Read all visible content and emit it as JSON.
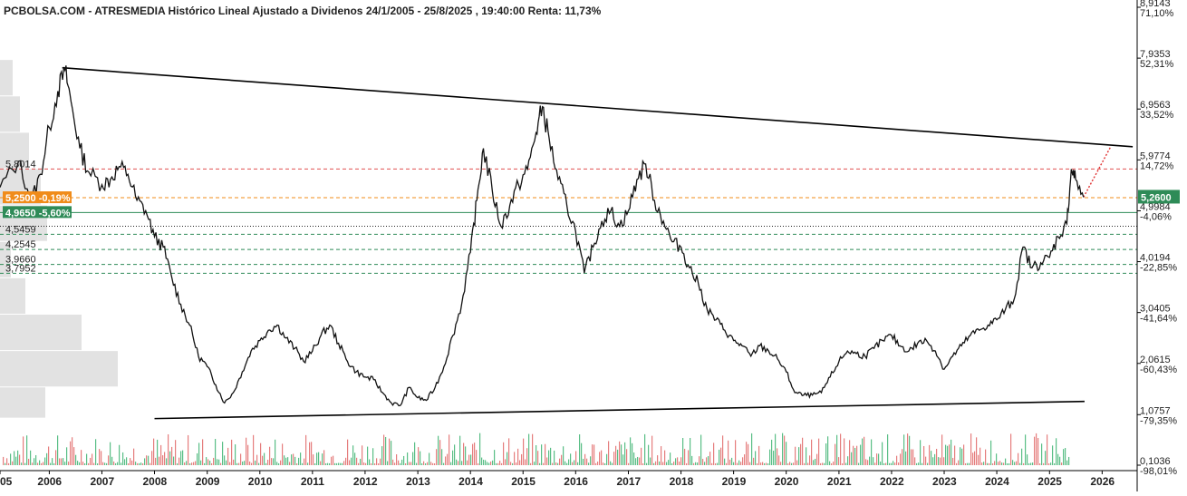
{
  "chart_data": {
    "type": "line",
    "title": "PCBOLSA.COM - ATRESMEDIA Histórico Lineal Ajustado a Dividenos 24/1/2005 - 25/8/2025 , 19:40:00 Renta: 11,73%",
    "x_range": [
      "2005-01-24",
      "2026-09-01"
    ],
    "y_range": [
      0.1036,
      8.9143
    ],
    "x_ticks": [
      "05",
      "2006",
      "2007",
      "2008",
      "2009",
      "2010",
      "2011",
      "2012",
      "2013",
      "2014",
      "2015",
      "2016",
      "2017",
      "2018",
      "2019",
      "2020",
      "2021",
      "2022",
      "2023",
      "2024",
      "2025",
      "2026"
    ],
    "y_ticks": [
      {
        "value": 8.9143,
        "label": "8,9143",
        "pct": "71,10%"
      },
      {
        "value": 7.9353,
        "label": "7,9353",
        "pct": "52,31%"
      },
      {
        "value": 6.9563,
        "label": "6,9563",
        "pct": "33,52%"
      },
      {
        "value": 5.9774,
        "label": "5,9774",
        "pct": "14,72%"
      },
      {
        "value": 4.9984,
        "label": "4,9984",
        "pct": "-4,06%"
      },
      {
        "value": 4.0194,
        "label": "4,0194",
        "pct": "-22,85%"
      },
      {
        "value": 3.0405,
        "label": "3,0405",
        "pct": "-41,64%"
      },
      {
        "value": 2.0615,
        "label": "2,0615",
        "pct": "-60,43%"
      },
      {
        "value": 1.0757,
        "label": "1,0757",
        "pct": "-79,35%"
      },
      {
        "value": 0.1036,
        "label": "0,1036",
        "pct": "-98,01%"
      }
    ],
    "series": [
      {
        "x": [
          "2005-01-24",
          "2005-06-01",
          "2005-09-01",
          "2005-11-01",
          "2006-01-01",
          "2006-03-01",
          "2006-04-20",
          "2006-06-01",
          "2006-08-01",
          "2006-10-01",
          "2007-01-01",
          "2007-03-01",
          "2007-05-01",
          "2007-07-01",
          "2007-09-01",
          "2007-11-01",
          "2008-01-01",
          "2008-03-01",
          "2008-05-01",
          "2008-07-01",
          "2008-09-01",
          "2008-11-01",
          "2009-01-01",
          "2009-03-01",
          "2009-05-01",
          "2009-07-01",
          "2009-09-01",
          "2009-11-01",
          "2010-01-01",
          "2010-03-01",
          "2010-05-01",
          "2010-07-01",
          "2010-09-01",
          "2010-11-01",
          "2011-01-01",
          "2011-03-01",
          "2011-05-01",
          "2011-07-01",
          "2011-09-01",
          "2011-11-01",
          "2012-01-01",
          "2012-03-01",
          "2012-05-01",
          "2012-07-01",
          "2012-09-01",
          "2012-11-01",
          "2013-01-01",
          "2013-03-01",
          "2013-05-01",
          "2013-07-01",
          "2013-09-01",
          "2013-11-01",
          "2014-01-01",
          "2014-02-15",
          "2014-04-01",
          "2014-06-01",
          "2014-08-01",
          "2014-10-01",
          "2014-12-01",
          "2015-02-01",
          "2015-04-01",
          "2015-05-15",
          "2015-07-01",
          "2015-09-01",
          "2015-11-01",
          "2016-01-01",
          "2016-03-01",
          "2016-05-01",
          "2016-07-01",
          "2016-09-01",
          "2016-11-01",
          "2017-01-01",
          "2017-03-01",
          "2017-05-01",
          "2017-07-01",
          "2017-09-01",
          "2017-11-01",
          "2018-01-01",
          "2018-03-01",
          "2018-05-01",
          "2018-07-01",
          "2018-09-01",
          "2018-11-01",
          "2019-01-01",
          "2019-03-01",
          "2019-05-01",
          "2019-07-01",
          "2019-09-01",
          "2019-11-01",
          "2020-01-01",
          "2020-03-01",
          "2020-05-01",
          "2020-07-01",
          "2020-09-01",
          "2020-11-01",
          "2021-01-01",
          "2021-03-01",
          "2021-05-01",
          "2021-07-01",
          "2021-09-01",
          "2021-11-01",
          "2022-01-01",
          "2022-03-01",
          "2022-05-01",
          "2022-07-01",
          "2022-09-01",
          "2022-11-01",
          "2023-01-01",
          "2023-03-01",
          "2023-05-01",
          "2023-07-01",
          "2023-09-01",
          "2023-11-01",
          "2024-01-01",
          "2024-03-01",
          "2024-05-01",
          "2024-07-01",
          "2024-09-01",
          "2024-11-01",
          "2025-01-01",
          "2025-03-01",
          "2025-05-01",
          "2025-06-01",
          "2025-07-01",
          "2025-08-25"
        ],
        "values": [
          5.45,
          5.95,
          5.2,
          5.7,
          6.6,
          7.3,
          7.7,
          7.1,
          6.2,
          5.75,
          5.5,
          5.6,
          5.85,
          5.7,
          5.2,
          5.0,
          4.5,
          4.3,
          3.7,
          3.2,
          2.8,
          2.2,
          2.0,
          1.65,
          1.3,
          1.5,
          1.9,
          2.3,
          2.5,
          2.7,
          2.8,
          2.55,
          2.35,
          2.1,
          2.3,
          2.6,
          2.8,
          2.45,
          2.1,
          1.9,
          1.8,
          1.75,
          1.5,
          1.3,
          1.25,
          1.6,
          1.4,
          1.35,
          1.6,
          2.0,
          2.6,
          3.2,
          4.2,
          5.2,
          6.2,
          5.4,
          4.7,
          5.1,
          5.5,
          5.8,
          6.5,
          7.0,
          6.4,
          5.6,
          5.1,
          4.6,
          3.8,
          4.3,
          4.8,
          5.0,
          4.7,
          5.0,
          5.6,
          5.9,
          5.2,
          4.8,
          4.4,
          4.3,
          3.9,
          3.6,
          3.1,
          2.9,
          2.7,
          2.5,
          2.4,
          2.2,
          2.4,
          2.3,
          2.15,
          1.9,
          1.5,
          1.45,
          1.45,
          1.5,
          1.8,
          2.1,
          2.3,
          2.25,
          2.2,
          2.35,
          2.5,
          2.6,
          2.4,
          2.3,
          2.45,
          2.5,
          2.3,
          1.95,
          2.2,
          2.4,
          2.6,
          2.7,
          2.8,
          2.9,
          3.1,
          3.3,
          4.3,
          3.9,
          4.0,
          4.1,
          4.5,
          4.75,
          5.8,
          5.6,
          5.26
        ]
      }
    ],
    "trendlines": [
      {
        "from": [
          "2006-04-01",
          7.75
        ],
        "to": [
          "2026-08-01",
          6.23
        ]
      },
      {
        "from": [
          "2008-01-01",
          1.0
        ],
        "to": [
          "2025-09-01",
          1.33
        ]
      }
    ],
    "projection": {
      "from": [
        "2025-08-25",
        5.26
      ],
      "to": [
        "2026-03-01",
        6.23
      ]
    },
    "levels": [
      {
        "value": 5.8014,
        "label": "5,8014",
        "color": "#e05050",
        "style": "dashed"
      },
      {
        "value": 5.25,
        "label": "5,2500",
        "pct": "-0,19%",
        "color": "#f08c1a",
        "style": "dashed"
      },
      {
        "value": 4.965,
        "label": "4,9650",
        "pct": "-5,60%",
        "color": "#2e8b57",
        "style": "solid"
      },
      {
        "value": 4.7,
        "label": "",
        "color": "#222222",
        "style": "dotted"
      },
      {
        "value": 4.5459,
        "label": "4,5459",
        "color": "#2e8b57",
        "style": "dashed"
      },
      {
        "value": 4.2545,
        "label": "4,2545",
        "color": "#2e8b57",
        "style": "dashed"
      },
      {
        "value": 3.966,
        "label": "3,9660",
        "color": "#2e8b57",
        "style": "dashed"
      },
      {
        "value": 3.7952,
        "label": "3,7952",
        "color": "#2e8b57",
        "style": "dashed"
      }
    ],
    "last_price": {
      "value": 5.26,
      "label": "5,2600",
      "color": "#2e8b57"
    },
    "volume_profile": [
      {
        "low": 7.2,
        "high": 7.9,
        "width": 14
      },
      {
        "low": 6.5,
        "high": 7.2,
        "width": 22
      },
      {
        "low": 5.8,
        "high": 6.5,
        "width": 32
      },
      {
        "low": 5.1,
        "high": 5.8,
        "width": 45
      },
      {
        "low": 4.4,
        "high": 5.1,
        "width": 52
      },
      {
        "low": 3.7,
        "high": 4.4,
        "width": 12
      },
      {
        "low": 3.0,
        "high": 3.7,
        "width": 28
      },
      {
        "low": 2.3,
        "high": 3.0,
        "width": 90
      },
      {
        "low": 1.6,
        "high": 2.3,
        "width": 130
      },
      {
        "low": 1.0,
        "high": 1.6,
        "width": 50
      }
    ],
    "colors": {
      "price_line": "#111111",
      "vol_up": "#3cb371",
      "vol_down": "#e06666",
      "profile": "#e2e2e2",
      "pct_positive": "#2e8b57",
      "pct_negative": "#e05050"
    },
    "grid": false
  }
}
